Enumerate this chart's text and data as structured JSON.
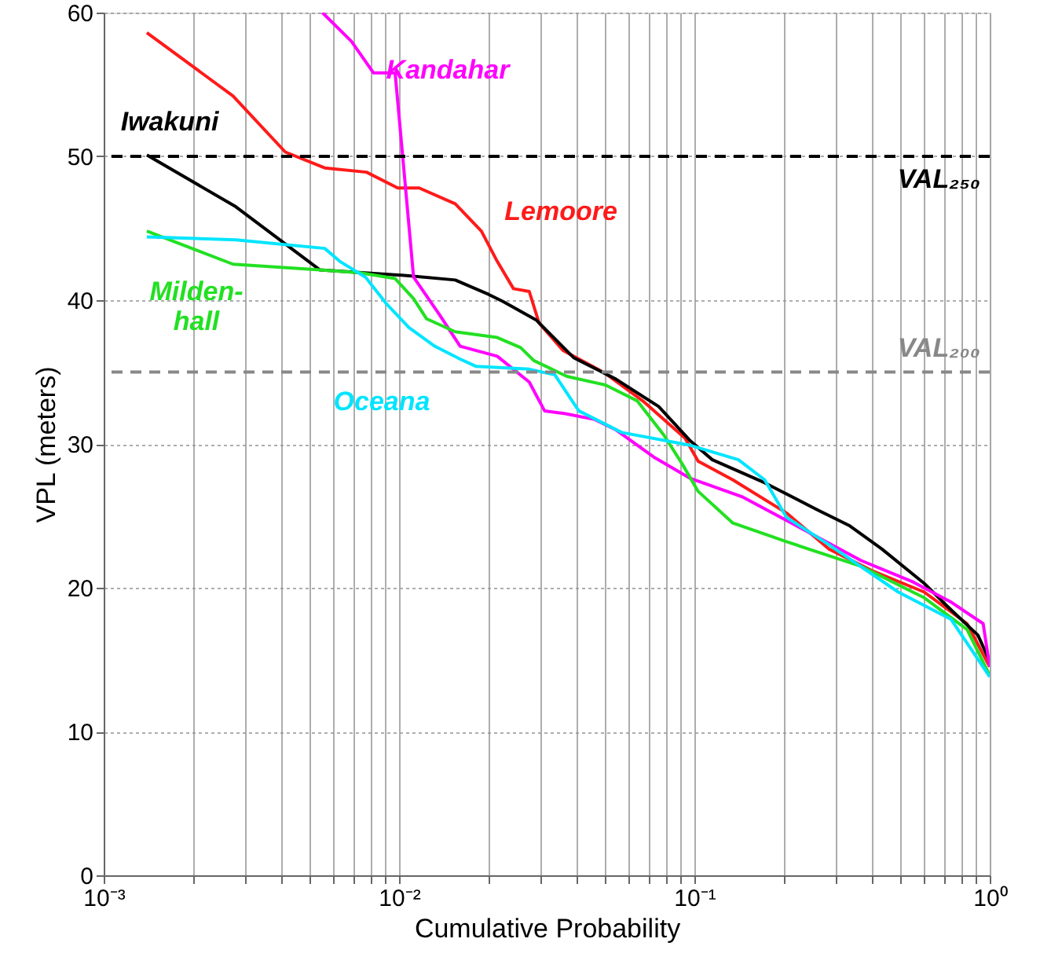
{
  "chart_data": {
    "type": "line",
    "xlabel": "Cumulative Probability",
    "ylabel": "VPL (meters)",
    "log": "x",
    "grid": true,
    "marker": "none",
    "line_style": "solid",
    "xlim": [
      0.001,
      1
    ],
    "ylim": [
      0,
      60
    ],
    "xticks": [
      {
        "value": 0.001,
        "label": "10⁻³"
      },
      {
        "value": 0.002,
        "label": null
      },
      {
        "value": 0.003,
        "label": null
      },
      {
        "value": 0.004,
        "label": null
      },
      {
        "value": 0.005,
        "label": null
      },
      {
        "value": 0.006,
        "label": null
      },
      {
        "value": 0.007,
        "label": null
      },
      {
        "value": 0.008,
        "label": null
      },
      {
        "value": 0.009,
        "label": null
      },
      {
        "value": 0.01,
        "label": "10⁻²"
      },
      {
        "value": 0.02,
        "label": null
      },
      {
        "value": 0.03,
        "label": null
      },
      {
        "value": 0.04,
        "label": null
      },
      {
        "value": 0.05,
        "label": null
      },
      {
        "value": 0.06,
        "label": null
      },
      {
        "value": 0.07,
        "label": null
      },
      {
        "value": 0.08,
        "label": null
      },
      {
        "value": 0.09,
        "label": null
      },
      {
        "value": 0.1,
        "label": "10⁻¹"
      },
      {
        "value": 0.2,
        "label": null
      },
      {
        "value": 0.3,
        "label": null
      },
      {
        "value": 0.4,
        "label": null
      },
      {
        "value": 0.5,
        "label": null
      },
      {
        "value": 0.6,
        "label": null
      },
      {
        "value": 0.7,
        "label": null
      },
      {
        "value": 0.8,
        "label": null
      },
      {
        "value": 0.9,
        "label": null
      },
      {
        "value": 1,
        "label": "10⁰"
      }
    ],
    "yticks": [
      0,
      10,
      20,
      30,
      40,
      50,
      60
    ],
    "ref_lines": [
      {
        "axis": "y",
        "value": 50,
        "label": "VAL₂₅₀",
        "color": "#000000",
        "line_style": "dashed"
      },
      {
        "axis": "y",
        "value": 35,
        "label": "VAL₂₀₀",
        "color": "#888888",
        "line_style": "dashed"
      }
    ],
    "series": [
      {
        "name": "Lemoore",
        "color": "#ff1a1a",
        "x": [
          0.0014,
          0.00274,
          0.00412,
          0.0056,
          0.00776,
          0.0099,
          0.0117,
          0.0155,
          0.019,
          0.0215,
          0.0244,
          0.0276,
          0.0298,
          0.0359,
          0.05,
          0.0668,
          0.093,
          0.103,
          0.135,
          0.205,
          0.285,
          0.398,
          0.6,
          0.838,
          1
        ],
        "values": [
          58.6,
          54.2,
          50.3,
          49.2,
          48.9,
          47.8,
          47.8,
          46.7,
          44.8,
          42.7,
          40.8,
          40.6,
          38.4,
          36.5,
          34.9,
          33.0,
          30.4,
          28.8,
          27.5,
          25.2,
          22.7,
          21.2,
          19.7,
          17.5,
          14.5
        ]
      },
      {
        "name": "Iwakuni",
        "color": "#000000",
        "x": [
          0.0014,
          0.0028,
          0.0054,
          0.0108,
          0.0155,
          0.0201,
          0.0225,
          0.0292,
          0.039,
          0.0543,
          0.0757,
          0.097,
          0.115,
          0.173,
          0.262,
          0.336,
          0.431,
          0.6,
          0.711,
          0.912,
          1
        ],
        "values": [
          50.1,
          46.5,
          42.1,
          41.7,
          41.4,
          40.4,
          39.9,
          38.6,
          36.0,
          34.5,
          32.6,
          30.2,
          28.9,
          27.3,
          25.4,
          24.3,
          22.7,
          20.3,
          18.8,
          16.7,
          14.9
        ]
      },
      {
        "name": "Kandahar",
        "color": "#ff00ff",
        "x": [
          0.0055,
          0.0069,
          0.0082,
          0.0097,
          0.0103,
          0.0112,
          0.0137,
          0.0161,
          0.0215,
          0.0276,
          0.0311,
          0.0366,
          0.046,
          0.054,
          0.0727,
          0.097,
          0.146,
          0.222,
          0.366,
          0.55,
          0.74,
          0.95,
          1
        ],
        "values": [
          60,
          58.0,
          55.8,
          55.8,
          49.9,
          41.6,
          39.0,
          36.8,
          36.1,
          34.3,
          32.3,
          32.1,
          31.7,
          31.0,
          29.1,
          27.6,
          26.3,
          24.3,
          21.9,
          20.4,
          19.0,
          17.5,
          14.5
        ]
      },
      {
        "name": "Milden-\nhall",
        "color": "#22e022",
        "x": [
          0.0014,
          0.00274,
          0.0054,
          0.0074,
          0.0097,
          0.0112,
          0.0124,
          0.0155,
          0.0215,
          0.0258,
          0.0286,
          0.037,
          0.05,
          0.064,
          0.0789,
          0.091,
          0.103,
          0.135,
          0.205,
          0.366,
          0.6,
          0.838,
          1
        ],
        "values": [
          44.8,
          42.5,
          42.1,
          41.9,
          41.5,
          40.1,
          38.7,
          37.8,
          37.4,
          36.7,
          35.8,
          34.7,
          34.1,
          33.0,
          30.6,
          28.6,
          26.7,
          24.5,
          23.2,
          21.5,
          19.3,
          17.1,
          13.9
        ]
      },
      {
        "name": "Oceana",
        "color": "#00e5ff",
        "x": [
          0.0014,
          0.0028,
          0.0056,
          0.0063,
          0.0077,
          0.0091,
          0.0108,
          0.0132,
          0.0161,
          0.0182,
          0.0276,
          0.0337,
          0.0406,
          0.0567,
          0.097,
          0.141,
          0.173,
          0.205,
          0.285,
          0.49,
          0.74,
          1
        ],
        "values": [
          44.4,
          44.2,
          43.6,
          42.7,
          41.6,
          39.7,
          38.1,
          36.8,
          35.9,
          35.4,
          35.2,
          34.8,
          32.3,
          30.8,
          29.9,
          28.9,
          27.5,
          24.9,
          23.0,
          19.7,
          17.8,
          13.8
        ]
      }
    ]
  }
}
